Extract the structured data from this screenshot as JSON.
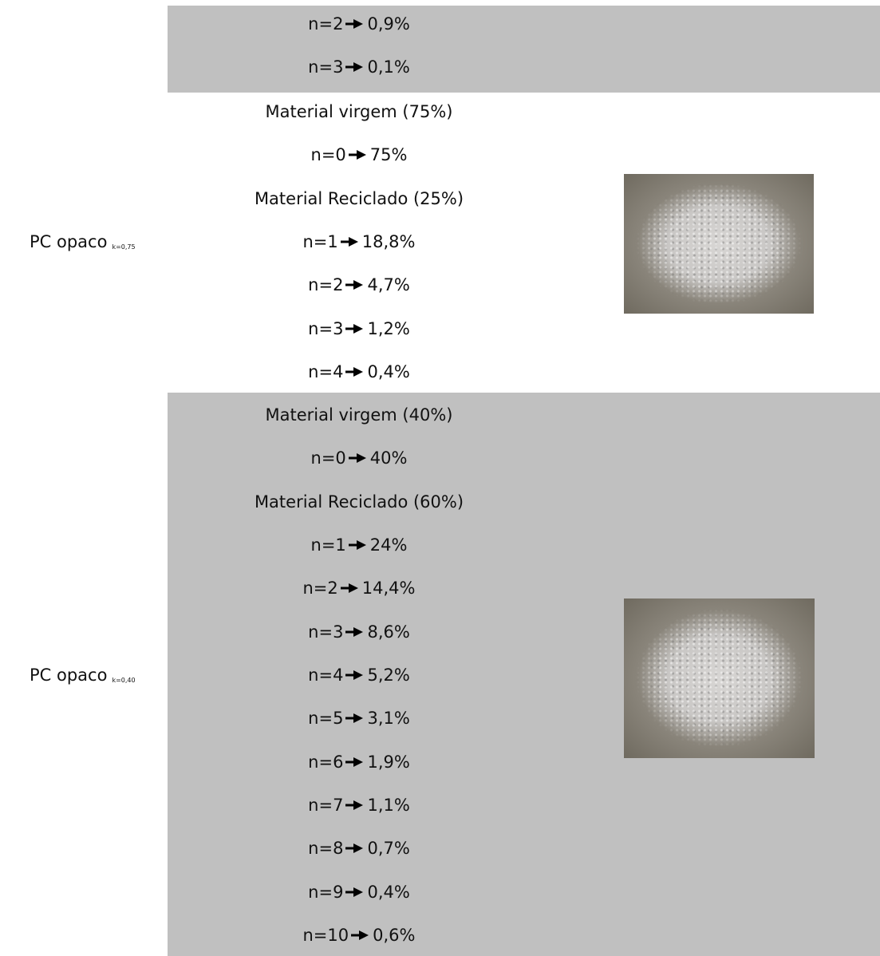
{
  "table": {
    "rows": [
      {
        "lines": [
          {
            "n": "n=2",
            "value": "0,9%"
          },
          {
            "n": "n=3",
            "value": "0,1%"
          }
        ]
      },
      {
        "label": "PC opaco",
        "subscript": "k=0,75",
        "lines": [
          {
            "text": "Material virgem (75%)"
          },
          {
            "n": "n=0",
            "value": "75%"
          },
          {
            "text": "Material Reciclado (25%)"
          },
          {
            "n": "n=1",
            "value": "18,8%"
          },
          {
            "n": "n=2",
            "value": "4,7%"
          },
          {
            "n": "n=3",
            "value": "1,2%"
          },
          {
            "n": "n=4",
            "value": "0,4%"
          }
        ]
      },
      {
        "label": "PC opaco",
        "subscript": "k=0,40",
        "lines": [
          {
            "text": "Material virgem (40%)"
          },
          {
            "n": "n=0",
            "value": "40%"
          },
          {
            "text": "Material Reciclado (60%)"
          },
          {
            "n": "n=1",
            "value": "24%"
          },
          {
            "n": "n=2",
            "value": "14,4%"
          },
          {
            "n": "n=3",
            "value": "8,6%"
          },
          {
            "n": "n=4",
            "value": "5,2%"
          },
          {
            "n": "n=5",
            "value": "3,1%"
          },
          {
            "n": "n=6",
            "value": "1,9%"
          },
          {
            "n": "n=7",
            "value": "1,1%"
          },
          {
            "n": "n=8",
            "value": "0,7%"
          },
          {
            "n": "n=9",
            "value": "0,4%"
          },
          {
            "n": "n=10",
            "value": "0,6%"
          }
        ]
      }
    ]
  }
}
